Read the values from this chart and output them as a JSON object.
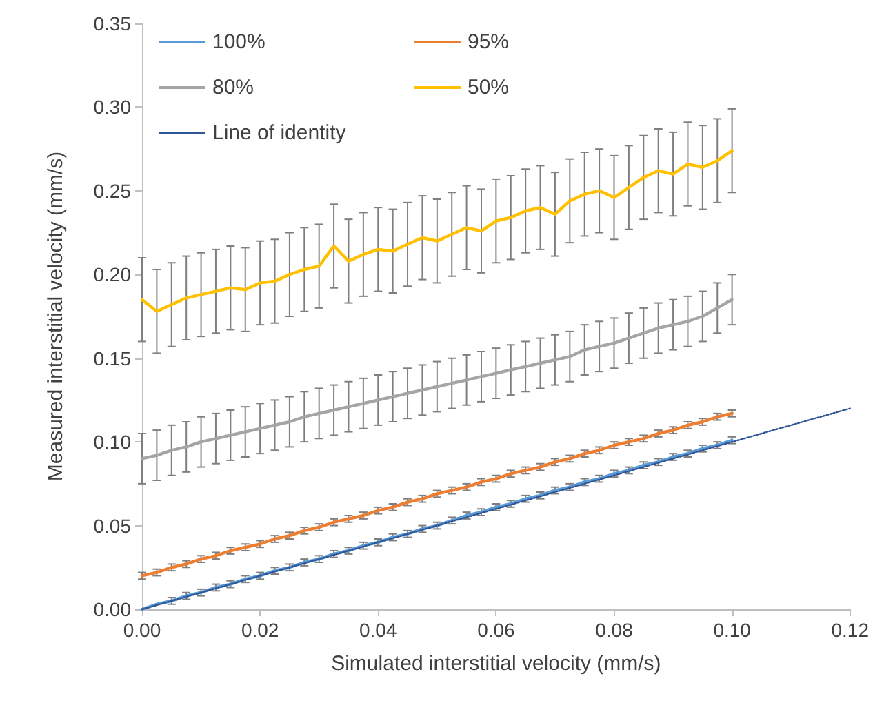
{
  "chart_data": {
    "type": "line",
    "xlabel": "Simulated interstitial velocity (mm/s)",
    "ylabel": "Measured interstitial velocity (mm/s)",
    "x": [
      0,
      0.0025,
      0.005,
      0.0075,
      0.01,
      0.0125,
      0.015,
      0.0175,
      0.02,
      0.0225,
      0.025,
      0.0275,
      0.03,
      0.0325,
      0.035,
      0.0375,
      0.04,
      0.0425,
      0.045,
      0.0475,
      0.05,
      0.0525,
      0.055,
      0.0575,
      0.06,
      0.0625,
      0.065,
      0.0675,
      0.07,
      0.0725,
      0.075,
      0.0775,
      0.08,
      0.0825,
      0.085,
      0.0875,
      0.09,
      0.0925,
      0.095,
      0.0975,
      0.1
    ],
    "series": [
      {
        "name": "100%",
        "color": "#5b9bd5",
        "values": [
          0,
          0.003,
          0.005,
          0.008,
          0.01,
          0.013,
          0.015,
          0.018,
          0.02,
          0.023,
          0.025,
          0.028,
          0.03,
          0.033,
          0.035,
          0.038,
          0.04,
          0.043,
          0.045,
          0.048,
          0.05,
          0.053,
          0.056,
          0.058,
          0.061,
          0.063,
          0.066,
          0.068,
          0.071,
          0.073,
          0.076,
          0.078,
          0.081,
          0.083,
          0.086,
          0.088,
          0.091,
          0.093,
          0.096,
          0.098,
          0.101
        ],
        "errors": [
          null,
          null,
          0.002,
          0.002,
          0.002,
          0.002,
          0.002,
          0.002,
          0.002,
          0.002,
          0.002,
          0.002,
          0.002,
          0.002,
          0.002,
          0.002,
          0.002,
          0.002,
          0.002,
          0.002,
          0.002,
          0.002,
          0.002,
          0.002,
          0.002,
          0.002,
          0.002,
          0.002,
          0.002,
          0.002,
          0.002,
          0.002,
          0.002,
          0.002,
          0.002,
          0.002,
          0.002,
          0.002,
          0.002,
          0.002,
          0.002
        ]
      },
      {
        "name": "95%",
        "color": "#ed7d31",
        "values": [
          0.02,
          0.022,
          0.025,
          0.027,
          0.03,
          0.032,
          0.035,
          0.037,
          0.039,
          0.042,
          0.044,
          0.047,
          0.049,
          0.052,
          0.054,
          0.056,
          0.059,
          0.061,
          0.064,
          0.066,
          0.069,
          0.071,
          0.073,
          0.076,
          0.078,
          0.081,
          0.083,
          0.085,
          0.088,
          0.09,
          0.093,
          0.095,
          0.098,
          0.1,
          0.102,
          0.105,
          0.107,
          0.11,
          0.112,
          0.115,
          0.117
        ],
        "errors": [
          0.002,
          0.002,
          0.002,
          0.002,
          0.002,
          0.002,
          0.002,
          0.002,
          0.002,
          0.002,
          0.002,
          0.002,
          0.002,
          0.002,
          0.002,
          0.002,
          0.002,
          0.002,
          0.002,
          0.002,
          0.002,
          0.002,
          0.002,
          0.002,
          0.002,
          0.002,
          0.002,
          0.002,
          0.002,
          0.002,
          0.002,
          0.002,
          0.002,
          0.002,
          0.002,
          0.002,
          0.002,
          0.002,
          0.002,
          0.002,
          0.002
        ]
      },
      {
        "name": "80%",
        "color": "#a5a5a5",
        "values": [
          0.09,
          0.092,
          0.095,
          0.097,
          0.1,
          0.102,
          0.104,
          0.106,
          0.108,
          0.11,
          0.112,
          0.115,
          0.117,
          0.119,
          0.121,
          0.123,
          0.125,
          0.127,
          0.129,
          0.131,
          0.133,
          0.135,
          0.137,
          0.139,
          0.141,
          0.143,
          0.145,
          0.147,
          0.149,
          0.151,
          0.155,
          0.157,
          0.159,
          0.162,
          0.165,
          0.168,
          0.17,
          0.172,
          0.175,
          0.18,
          0.185
        ],
        "errors": [
          0.015,
          0.015,
          0.015,
          0.015,
          0.015,
          0.015,
          0.015,
          0.015,
          0.015,
          0.015,
          0.015,
          0.015,
          0.015,
          0.015,
          0.015,
          0.015,
          0.015,
          0.015,
          0.015,
          0.015,
          0.015,
          0.015,
          0.015,
          0.015,
          0.015,
          0.015,
          0.015,
          0.015,
          0.015,
          0.015,
          0.015,
          0.015,
          0.015,
          0.015,
          0.015,
          0.015,
          0.015,
          0.015,
          0.015,
          0.015,
          0.015
        ]
      },
      {
        "name": "50%",
        "color": "#ffc000",
        "values": [
          0.185,
          0.178,
          0.182,
          0.186,
          0.188,
          0.19,
          0.192,
          0.191,
          0.195,
          0.196,
          0.2,
          0.203,
          0.205,
          0.217,
          0.208,
          0.212,
          0.215,
          0.214,
          0.218,
          0.222,
          0.22,
          0.224,
          0.228,
          0.226,
          0.232,
          0.234,
          0.238,
          0.24,
          0.236,
          0.244,
          0.248,
          0.25,
          0.246,
          0.252,
          0.258,
          0.262,
          0.26,
          0.266,
          0.264,
          0.268,
          0.274
        ],
        "errors": [
          0.025,
          0.025,
          0.025,
          0.025,
          0.025,
          0.025,
          0.025,
          0.025,
          0.025,
          0.025,
          0.025,
          0.025,
          0.025,
          0.025,
          0.025,
          0.025,
          0.025,
          0.025,
          0.025,
          0.025,
          0.025,
          0.025,
          0.025,
          0.025,
          0.025,
          0.025,
          0.025,
          0.025,
          0.025,
          0.025,
          0.025,
          0.025,
          0.025,
          0.025,
          0.025,
          0.025,
          0.025,
          0.025,
          0.025,
          0.025,
          0.025
        ]
      },
      {
        "name": "Line of identity",
        "color": "#2f5597",
        "line_style": "dotted",
        "x": [
          0,
          0.12
        ],
        "values": [
          0,
          0.12
        ]
      }
    ],
    "xlim": [
      0,
      0.12
    ],
    "xticks": [
      {
        "value": 0,
        "label": "0.00"
      },
      {
        "value": 0.02,
        "label": "0.02"
      },
      {
        "value": 0.04,
        "label": "0.04"
      },
      {
        "value": 0.06,
        "label": "0.06"
      },
      {
        "value": 0.08,
        "label": "0.08"
      },
      {
        "value": 0.1,
        "label": "0.10"
      },
      {
        "value": 0.12,
        "label": "0.12"
      }
    ],
    "ylim": [
      0,
      0.35
    ],
    "yticks": [
      {
        "value": 0,
        "label": "0.00"
      },
      {
        "value": 0.05,
        "label": "0.05"
      },
      {
        "value": 0.1,
        "label": "0.10"
      },
      {
        "value": 0.15,
        "label": "0.15"
      },
      {
        "value": 0.2,
        "label": "0.20"
      },
      {
        "value": 0.25,
        "label": "0.25"
      },
      {
        "value": 0.3,
        "label": "0.30"
      },
      {
        "value": 0.35,
        "label": "0.35"
      }
    ],
    "grid": false,
    "legend": "top left",
    "marker": "none",
    "line_style": "solid"
  }
}
